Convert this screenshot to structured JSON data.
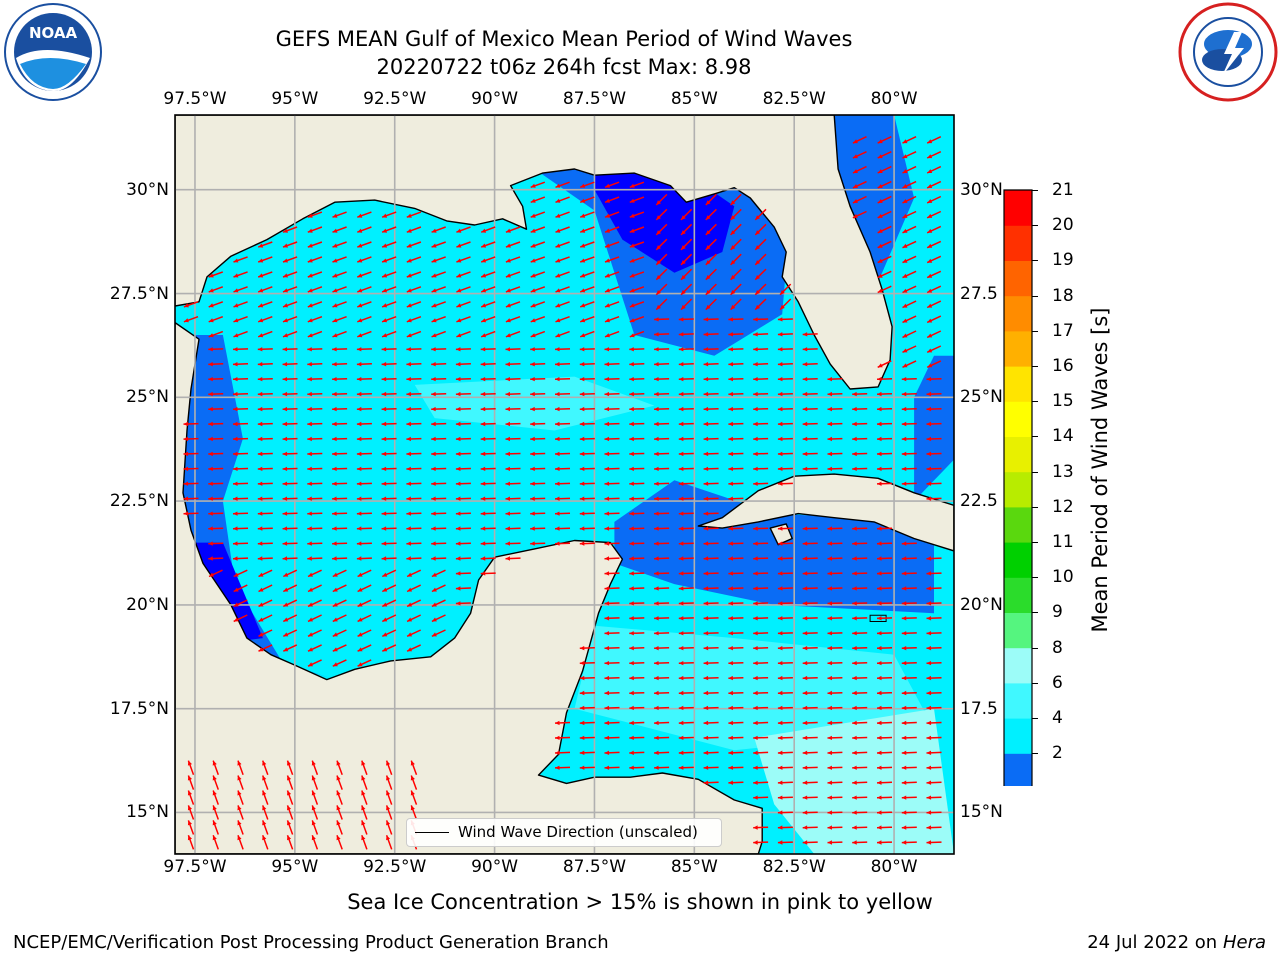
{
  "header": {
    "title_line1": "GEFS MEAN Gulf of Mexico Mean Period of Wind Waves",
    "title_line2": "20220722 t06z 264h fcst   Max: 8.98"
  },
  "logos": {
    "left": {
      "name": "noaa-logo",
      "text": "NOAA",
      "ring_text": "NATIONAL OCEANIC AND ATMOSPHERIC ADMINISTRATION · U.S. DEPARTMENT OF COMMERCE"
    },
    "right": {
      "name": "nws-logo",
      "ring_text": "NATIONAL WEATHER SERVICE"
    }
  },
  "map": {
    "region": "Gulf of Mexico",
    "lon_ticks": [
      "97.5°W",
      "95°W",
      "92.5°W",
      "90°W",
      "87.5°W",
      "85°W",
      "82.5°W",
      "80°W"
    ],
    "lat_ticks_left": [
      "30°N",
      "27.5°N",
      "25°N",
      "22.5°N",
      "20°N",
      "17.5°N",
      "15°N"
    ],
    "lat_ticks_right": [
      "30°N",
      "27.5",
      "25°N",
      "22.5",
      "20°N",
      "17.5",
      "15°N"
    ],
    "lon_range": [
      -98,
      -78.5
    ],
    "lat_range": [
      14,
      31.8
    ],
    "grid": true,
    "land_color": "#efedde",
    "arrow_color": "#ff0000",
    "legend": {
      "entry": "Wind Wave Direction (unscaled)",
      "placement": "bottom-center"
    }
  },
  "colorbar": {
    "label": "Mean Period of Wind Waves [s]",
    "ticks": [
      "21",
      "20",
      "19",
      "18",
      "17",
      "16",
      "15",
      "14",
      "13",
      "12",
      "11",
      "10",
      "9",
      "8",
      "6",
      "4",
      "2"
    ],
    "bands": [
      {
        "range": "2-4",
        "color": "#0a6cf5"
      },
      {
        "range": "4-6",
        "color": "#00f0ff"
      },
      {
        "range": "6-8",
        "color": "#40f8ff"
      },
      {
        "range": "8-9",
        "color": "#9cfcf8"
      },
      {
        "range": "9-10",
        "color": "#55f57f"
      },
      {
        "range": "10-11",
        "color": "#2bdc2b"
      },
      {
        "range": "11-12",
        "color": "#00d000"
      },
      {
        "range": "12-13",
        "color": "#5ad80e"
      },
      {
        "range": "13-14",
        "color": "#b8ec00"
      },
      {
        "range": "14-15",
        "color": "#e8f000"
      },
      {
        "range": "15-16",
        "color": "#ffff00"
      },
      {
        "range": "16-17",
        "color": "#ffe400"
      },
      {
        "range": "17-18",
        "color": "#ffb000"
      },
      {
        "range": "18-19",
        "color": "#ff8c00"
      },
      {
        "range": "19-20",
        "color": "#ff6400"
      },
      {
        "range": "20-21",
        "color": "#ff3000"
      },
      {
        "range": ">21",
        "color": "#ff0000"
      }
    ],
    "under_color": "#0000ff"
  },
  "notes": {
    "sea_ice": "Sea Ice Concentration > 15% is shown in pink to yellow"
  },
  "footer": {
    "left": "NCEP/EMC/Verification Post Processing Product Generation Branch",
    "right_prefix": "24 Jul 2022 on ",
    "right_host": "Hera"
  }
}
